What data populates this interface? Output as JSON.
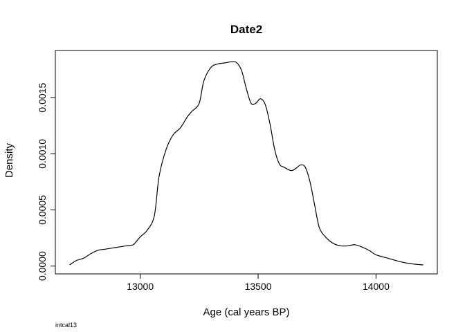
{
  "chart_data": {
    "type": "line",
    "title": "Date2",
    "xlabel": "Age (cal years BP)",
    "ylabel": "Density",
    "footnote": "intcal13",
    "xlim": [
      12640,
      14260
    ],
    "ylim": [
      -7e-05,
      0.00192
    ],
    "x_ticks": [
      13000,
      13500,
      14000
    ],
    "x_tick_labels": [
      "13000",
      "13500",
      "14000"
    ],
    "y_ticks": [
      0.0,
      0.0005,
      0.001,
      0.0015
    ],
    "y_tick_labels": [
      "0.0000",
      "0.0005",
      "0.0010",
      "0.0015"
    ],
    "grid": false,
    "legend": "none",
    "series": [
      {
        "color": "#000000",
        "x": [
          12700,
          12730,
          12760,
          12790,
          12820,
          12850,
          12880,
          12910,
          12940,
          12970,
          13000,
          13030,
          13060,
          13080,
          13110,
          13140,
          13170,
          13200,
          13220,
          13250,
          13270,
          13300,
          13330,
          13360,
          13390,
          13410,
          13430,
          13450,
          13470,
          13490,
          13510,
          13530,
          13550,
          13570,
          13590,
          13610,
          13640,
          13660,
          13680,
          13700,
          13720,
          13740,
          13760,
          13790,
          13820,
          13850,
          13880,
          13910,
          13940,
          13970,
          14000,
          14050,
          14100,
          14150,
          14200
        ],
        "y": [
          1e-05,
          5e-05,
          7e-05,
          0.00011,
          0.00014,
          0.00015,
          0.00016,
          0.00017,
          0.00018,
          0.00019,
          0.00026,
          0.00032,
          0.00045,
          0.0008,
          0.00104,
          0.00117,
          0.00123,
          0.00133,
          0.00138,
          0.00145,
          0.00165,
          0.00177,
          0.0018,
          0.00181,
          0.00182,
          0.00181,
          0.00174,
          0.00158,
          0.00145,
          0.00145,
          0.00149,
          0.00144,
          0.00127,
          0.00104,
          0.00091,
          0.00088,
          0.00085,
          0.00087,
          0.0009,
          0.00088,
          0.00075,
          0.00054,
          0.00034,
          0.00025,
          0.0002,
          0.00018,
          0.00018,
          0.00019,
          0.00017,
          0.00014,
          0.0001,
          7e-05,
          4e-05,
          2e-05,
          1e-05
        ]
      }
    ]
  }
}
